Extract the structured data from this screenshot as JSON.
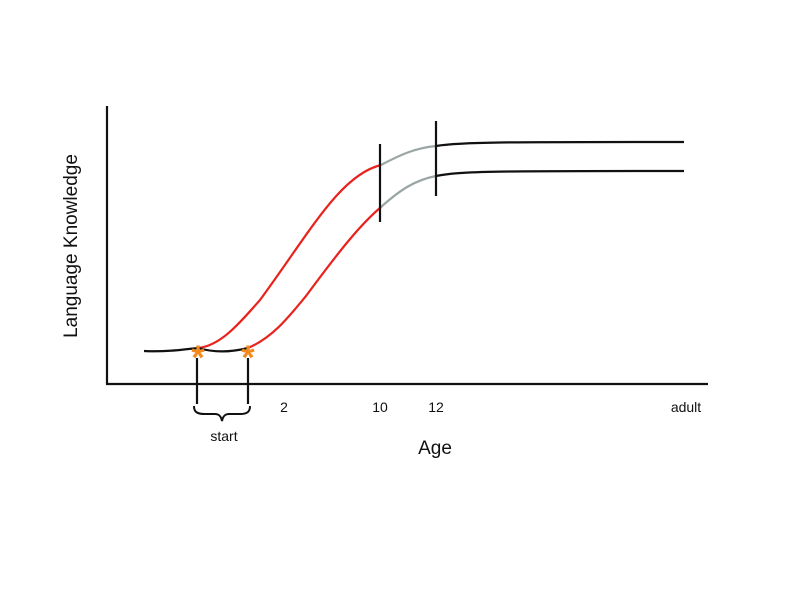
{
  "diagram": {
    "y_axis_label": "Language Knowledge",
    "x_axis_label": "Age",
    "x_tick_labels": [
      "2",
      "10",
      "12",
      "adult"
    ],
    "start_bracket_label": "start",
    "marker_symbol": "*",
    "colors": {
      "axis": "#111111",
      "baseline_curve": "#111111",
      "rising_curve": "#e8231d",
      "transition_curve": "#9aa5a5",
      "start_marker": "#f28a1e"
    },
    "curves": [
      {
        "id": "earlier-start",
        "starts_with_marker": true,
        "cutoff_age_mark": "10"
      },
      {
        "id": "later-start",
        "starts_with_marker": true,
        "cutoff_age_mark": "12"
      }
    ]
  }
}
